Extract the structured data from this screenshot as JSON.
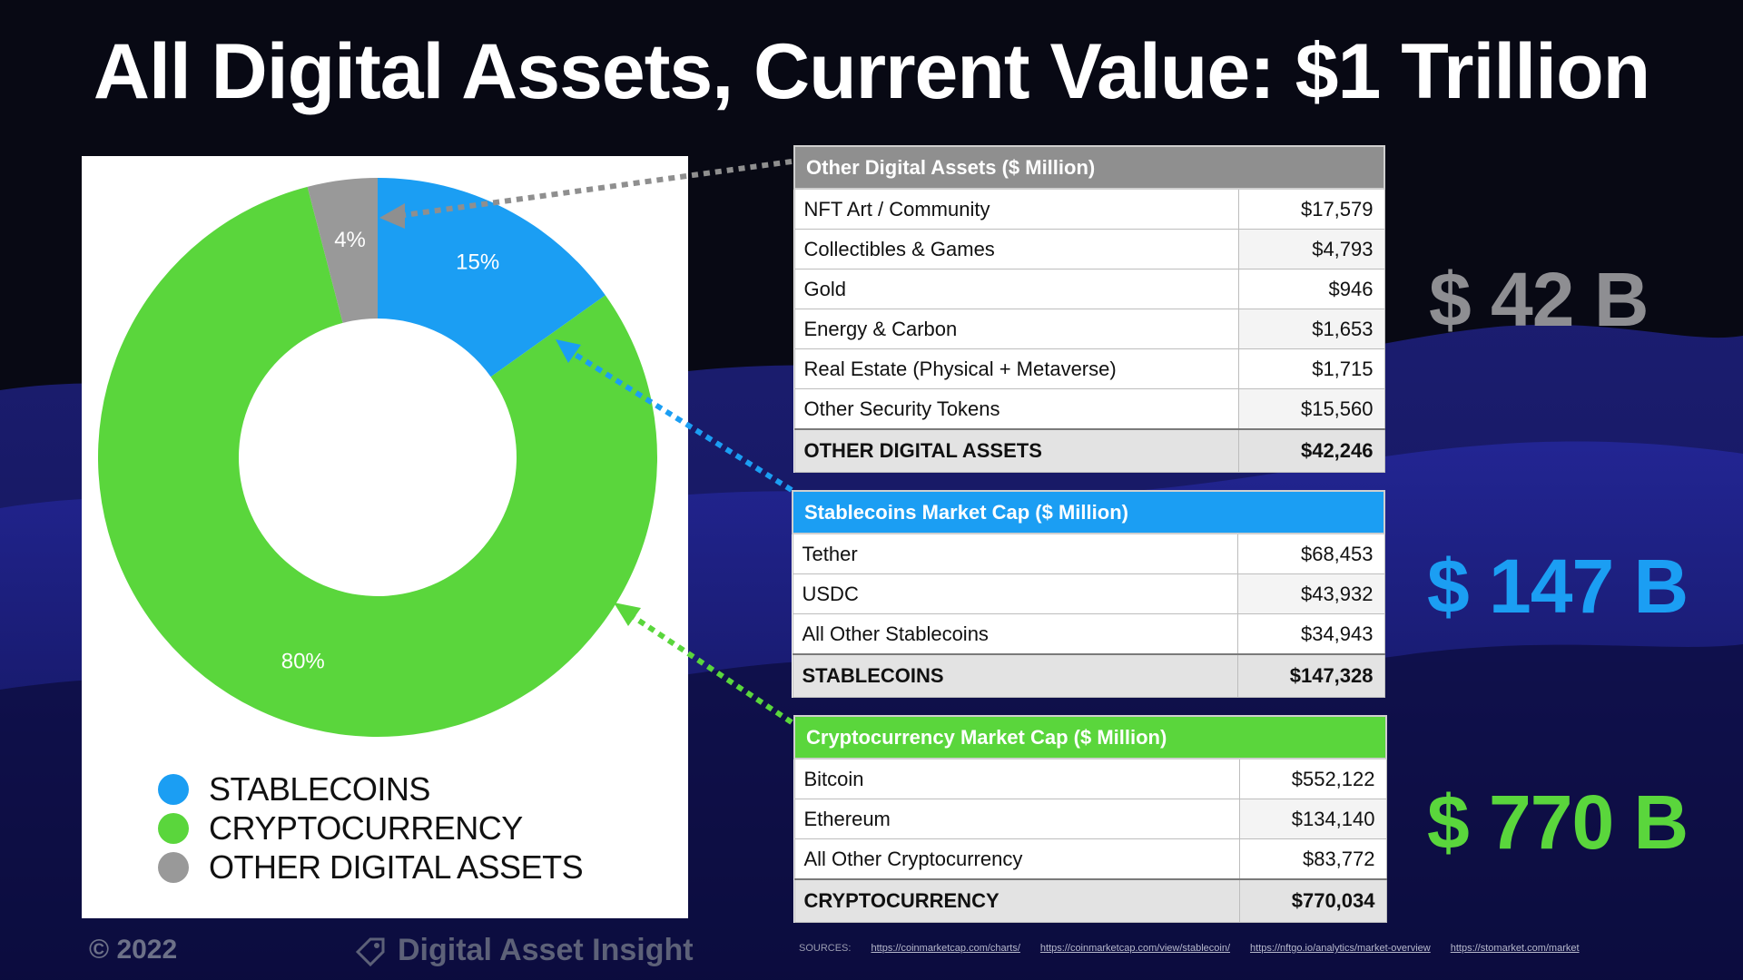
{
  "title": "All Digital Assets, Current Value: $1 Trillion",
  "colors": {
    "stablecoins": "#1b9ef3",
    "cryptocurrency": "#5ad63c",
    "other": "#999999",
    "bg": "#080914"
  },
  "chart_data": {
    "type": "pie",
    "donut": true,
    "categories": [
      "STABLECOINS",
      "CRYPTOCURRENCY",
      "OTHER DIGITAL ASSETS"
    ],
    "values": [
      15,
      80,
      4
    ],
    "labels": [
      "15%",
      "80%",
      "4%"
    ],
    "colors": [
      "#1b9ef3",
      "#5ad63c",
      "#999999"
    ],
    "legend_position": "bottom-left"
  },
  "legend": {
    "items": [
      {
        "label": "STABLECOINS",
        "color": "#1b9ef3"
      },
      {
        "label": "CRYPTOCURRENCY",
        "color": "#5ad63c"
      },
      {
        "label": "OTHER DIGITAL ASSETS",
        "color": "#999999"
      }
    ]
  },
  "tables": {
    "other": {
      "header": "Other Digital Assets ($ Million)",
      "color": "#8f8f8f",
      "rows": [
        {
          "label": "NFT Art / Community",
          "value": "$17,579"
        },
        {
          "label": "Collectibles & Games",
          "value": "$4,793"
        },
        {
          "label": "Gold",
          "value": "$946"
        },
        {
          "label": "Energy & Carbon",
          "value": "$1,653"
        },
        {
          "label": "Real Estate (Physical + Metaverse)",
          "value": "$1,715"
        },
        {
          "label": "Other Security Tokens",
          "value": "$15,560"
        }
      ],
      "total": {
        "label": "OTHER DIGITAL ASSETS",
        "value": "$42,246"
      }
    },
    "stablecoins": {
      "header": "Stablecoins Market Cap ($ Million)",
      "color": "#1b9ef3",
      "rows": [
        {
          "label": "Tether",
          "value": "$68,453"
        },
        {
          "label": "USDC",
          "value": "$43,932"
        },
        {
          "label": "All Other Stablecoins",
          "value": "$34,943"
        }
      ],
      "total": {
        "label": "STABLECOINS",
        "value": "$147,328"
      }
    },
    "crypto": {
      "header": "Cryptocurrency Market Cap ($ Million)",
      "color": "#5ad63c",
      "rows": [
        {
          "label": "Bitcoin",
          "value": "$552,122"
        },
        {
          "label": "Ethereum",
          "value": "$134,140"
        },
        {
          "label": "All Other Cryptocurrency",
          "value": "$83,772"
        }
      ],
      "total": {
        "label": "CRYPTOCURRENCY",
        "value": "$770,034"
      }
    }
  },
  "big_values": {
    "other": "$ 42 B",
    "stablecoins": "$ 147 B",
    "crypto": "$ 770 B"
  },
  "footer": {
    "copyright": "© 2022",
    "brand": "Digital Asset Insight",
    "sources_label": "SOURCES:",
    "sources": [
      "https://coinmarketcap.com/charts/",
      "https://coinmarketcap.com/view/stablecoin/",
      "https://nftgo.io/analytics/market-overview",
      "https://stomarket.com/market"
    ]
  }
}
